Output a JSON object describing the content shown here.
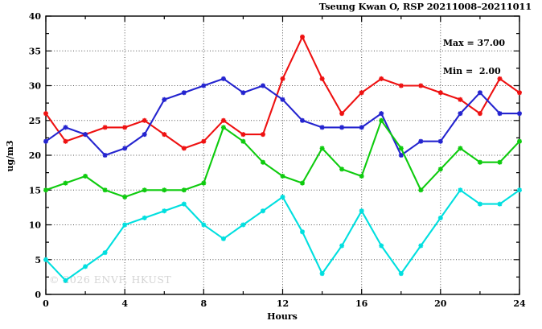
{
  "chart": {
    "title": "Tseung Kwan O, RSP 20211008–20211011",
    "ylabel": "ug/m3",
    "xlabel": "Hours",
    "annotation": {
      "max": "Max = 37.00",
      "min": "Min =  2.00"
    },
    "watermark": "© 2026 ENVF, HKUST"
  },
  "chart_data": {
    "type": "line",
    "title": "Tseung Kwan O, RSP 20211008–20211011",
    "xlabel": "Hours",
    "ylabel": "ug/m3",
    "xlim": [
      0,
      24
    ],
    "ylim": [
      0,
      40
    ],
    "x_ticks_major": [
      0,
      4,
      8,
      12,
      16,
      20,
      24
    ],
    "x_tick_minor_step": 2,
    "y_ticks_major": [
      0,
      5,
      10,
      15,
      20,
      25,
      30,
      35,
      40
    ],
    "y_tick_minor_step": 2.5,
    "grid": {
      "x_values": [
        4,
        8,
        12,
        16,
        20
      ],
      "y_values": [
        5,
        10,
        15,
        20,
        25,
        30,
        35
      ]
    },
    "legend": "none",
    "x": [
      0,
      1,
      2,
      3,
      4,
      5,
      6,
      7,
      8,
      9,
      10,
      11,
      12,
      13,
      14,
      15,
      16,
      17,
      18,
      19,
      20,
      21,
      22,
      23,
      24
    ],
    "series": [
      {
        "name": "series-red",
        "color": "#ee1111",
        "values": [
          26,
          22,
          23,
          24,
          24,
          25,
          23,
          21,
          22,
          25,
          23,
          23,
          31,
          37,
          31,
          26,
          29,
          31,
          30,
          30,
          29,
          28,
          26,
          31,
          29
        ]
      },
      {
        "name": "series-blue",
        "color": "#2424cf",
        "values": [
          22,
          24,
          23,
          20,
          21,
          23,
          28,
          29,
          30,
          31,
          29,
          30,
          28,
          25,
          24,
          24,
          24,
          26,
          20,
          22,
          22,
          26,
          29,
          26,
          26
        ]
      },
      {
        "name": "series-green",
        "color": "#0ecb0e",
        "values": [
          15,
          16,
          17,
          15,
          14,
          15,
          15,
          15,
          16,
          24,
          22,
          19,
          17,
          16,
          21,
          18,
          17,
          25,
          21,
          15,
          18,
          21,
          19,
          19,
          22
        ]
      },
      {
        "name": "series-cyan",
        "color": "#00dfdf",
        "values": [
          5,
          2,
          4,
          6,
          10,
          11,
          12,
          13,
          10,
          8,
          10,
          12,
          14,
          9,
          3,
          7,
          12,
          7,
          3,
          7,
          11,
          15,
          13,
          13,
          15
        ]
      }
    ],
    "stats": {
      "max": 37.0,
      "min": 2.0
    }
  }
}
